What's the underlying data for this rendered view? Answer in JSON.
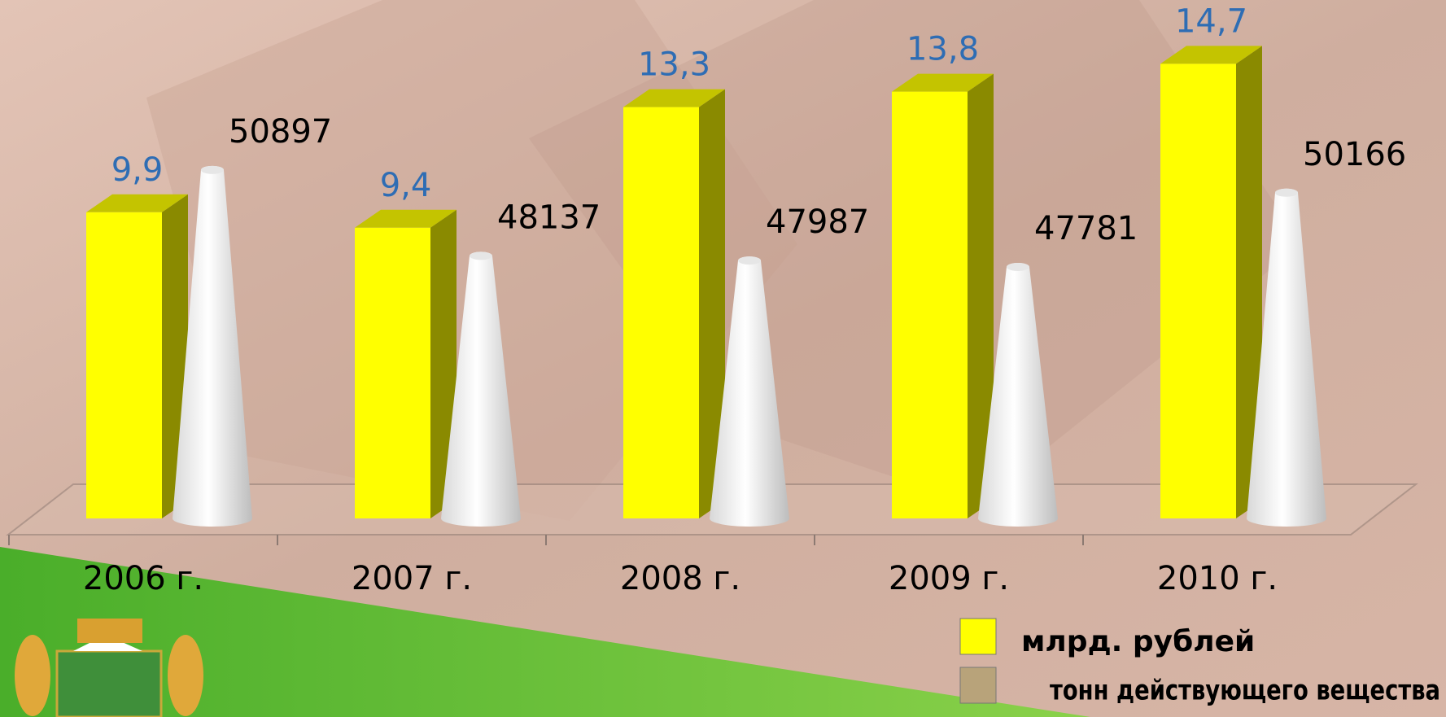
{
  "chart_data": {
    "type": "bar",
    "categories": [
      "2006 г.",
      "2007 г.",
      "2008 г.",
      "2009 г.",
      "2010 г."
    ],
    "series": [
      {
        "name": "млрд. рублей",
        "color": "#ffff00",
        "values": [
          9.9,
          9.4,
          13.3,
          13.8,
          14.7
        ],
        "value_labels": [
          "9,9",
          "9,4",
          "13,3",
          "13,8",
          "14,7"
        ]
      },
      {
        "name": "тонн действующего вещества",
        "color": "#f2f2f2",
        "axis": "y2",
        "values": [
          50897,
          48137,
          47987,
          47781,
          50166
        ]
      }
    ],
    "ylim": [
      0,
      16
    ],
    "y2lim": [
      39700,
      55600
    ]
  }
}
